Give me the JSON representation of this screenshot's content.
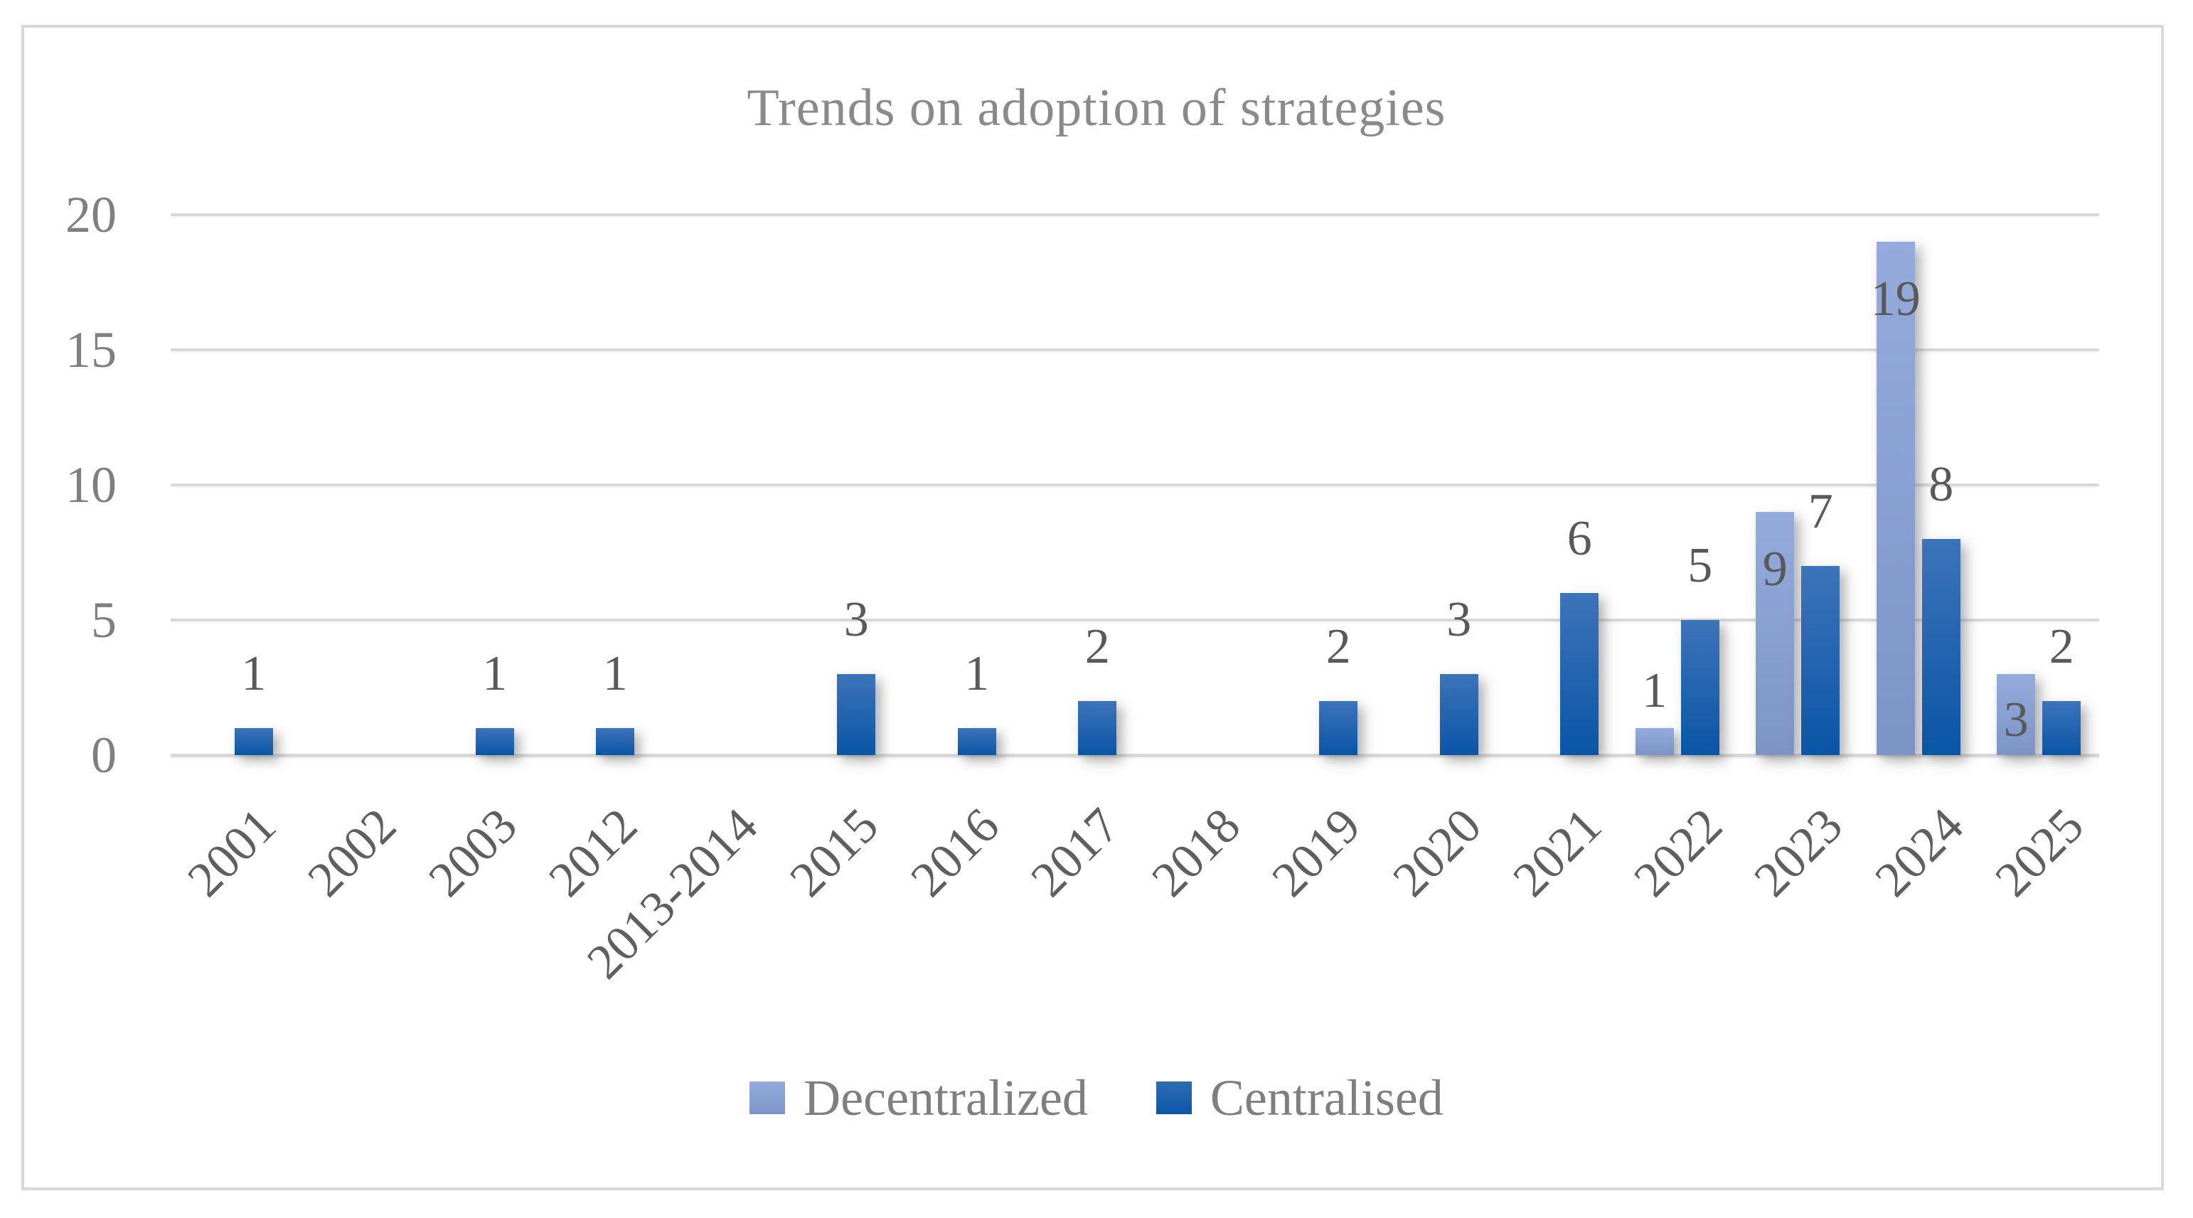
{
  "chart_data": {
    "type": "bar",
    "title": "Trends on adoption of strategies",
    "categories": [
      "2001",
      "2002",
      "2003",
      "2012",
      "2013-2014",
      "2015",
      "2016",
      "2017",
      "2018",
      "2019",
      "2020",
      "2021",
      "2022",
      "2023",
      "2024",
      "2025"
    ],
    "series": [
      {
        "name": "Decentralized",
        "color_top": "#94abdc",
        "color_bottom": "#7d94c6",
        "values": [
          0,
          0,
          0,
          0,
          0,
          0,
          0,
          0,
          0,
          0,
          0,
          0,
          1,
          9,
          19,
          3
        ]
      },
      {
        "name": "Centralised",
        "color_top": "#3d74b9",
        "color_bottom": "#0a55a6",
        "values": [
          1,
          0,
          1,
          1,
          0,
          3,
          1,
          2,
          0,
          2,
          3,
          6,
          5,
          7,
          8,
          2
        ]
      }
    ],
    "xlabel": "",
    "ylabel": "",
    "ylim": [
      0,
      20
    ],
    "yticks": [
      0,
      5,
      10,
      15,
      20
    ],
    "grid": "horizontal-only",
    "legend_position": "bottom",
    "data_labels": "shown-for-nonzero-values",
    "colors": {
      "title_text": "#8a8a8a",
      "axis_tick_text": "#7f7f7f",
      "category_text": "#5f5f5f",
      "data_label_text": "#595959",
      "legend_text": "#7f7f7f",
      "gridline": "#d9d9d9",
      "frame_border": "#d9d9d9",
      "background": "#ffffff"
    }
  }
}
